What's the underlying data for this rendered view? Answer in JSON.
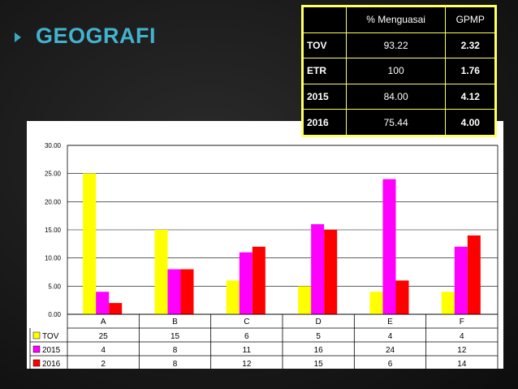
{
  "slide": {
    "title": "GEOGRAFI"
  },
  "stats_table": {
    "headers": [
      "",
      "% Menguasai",
      "GPMP"
    ],
    "rows": [
      {
        "label": "TOV",
        "menguasai": "93.22",
        "gpmp": "2.32"
      },
      {
        "label": "ETR",
        "menguasai": "100",
        "gpmp": "1.76"
      },
      {
        "label": "2015",
        "menguasai": "84.00",
        "gpmp": "4.12"
      },
      {
        "label": "2016",
        "menguasai": "75.44",
        "gpmp": "4.00"
      }
    ]
  },
  "chart_data": {
    "type": "bar",
    "categories": [
      "A",
      "B",
      "C",
      "D",
      "E",
      "F"
    ],
    "series": [
      {
        "name": "TOV",
        "values": [
          25,
          15,
          6,
          5,
          4,
          4
        ],
        "color": "#ffff00"
      },
      {
        "name": "2015",
        "values": [
          4,
          8,
          11,
          16,
          24,
          12
        ],
        "color": "#ff00ff"
      },
      {
        "name": "2016",
        "values": [
          2,
          8,
          12,
          15,
          6,
          14
        ],
        "color": "#ff0000"
      }
    ],
    "ylim": [
      0,
      30
    ],
    "yticks": [
      "0.00",
      "5.00",
      "10.00",
      "15.00",
      "20.00",
      "25.00",
      "30.00"
    ],
    "grid": true,
    "legend": "data-table"
  }
}
